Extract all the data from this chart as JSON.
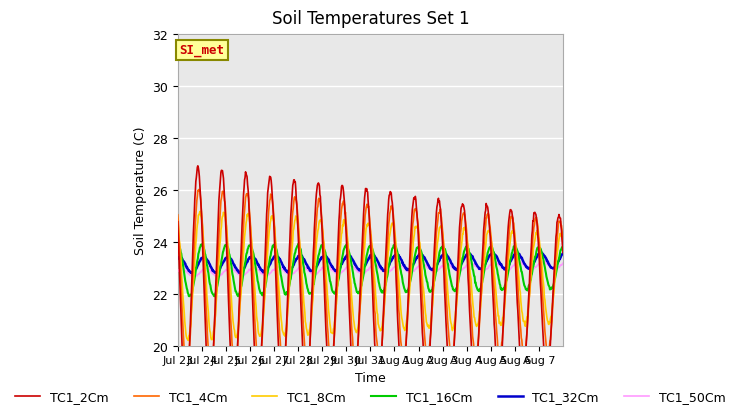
{
  "title": "Soil Temperatures Set 1",
  "xlabel": "Time",
  "ylabel": "Soil Temperature (C)",
  "ylim": [
    20,
    32
  ],
  "n_days": 16,
  "annotation": "SI_met",
  "series_colors": {
    "TC1_2Cm": "#cc0000",
    "TC1_4Cm": "#ff6600",
    "TC1_8Cm": "#ffcc00",
    "TC1_16Cm": "#00cc00",
    "TC1_32Cm": "#0000cc",
    "TC1_50Cm": "#ff99ff"
  },
  "series_linewidths": {
    "TC1_2Cm": 1.2,
    "TC1_4Cm": 1.2,
    "TC1_8Cm": 1.2,
    "TC1_16Cm": 1.5,
    "TC1_32Cm": 1.8,
    "TC1_50Cm": 1.2
  },
  "tick_labels": [
    "Jul 23",
    "Jul 24",
    "Jul 25",
    "Jul 26",
    "Jul 27",
    "Jul 28",
    "Jul 29",
    "Jul 30",
    "Jul 31",
    "Aug 1",
    "Aug 2",
    "Aug 3",
    "Aug 4",
    "Aug 5",
    "Aug 6",
    "Aug 7"
  ],
  "yticks": [
    20,
    22,
    24,
    26,
    28,
    30,
    32
  ],
  "axes_face_color": "#e8e8e8",
  "figure_face_color": "#ffffff",
  "grid_color": "#ffffff",
  "legend_entries": [
    "TC1_2Cm",
    "TC1_4Cm",
    "TC1_8Cm",
    "TC1_16Cm",
    "TC1_32Cm",
    "TC1_50Cm"
  ],
  "plot_order": [
    "TC1_50Cm",
    "TC1_32Cm",
    "TC1_16Cm",
    "TC1_8Cm",
    "TC1_4Cm",
    "TC1_2Cm"
  ]
}
